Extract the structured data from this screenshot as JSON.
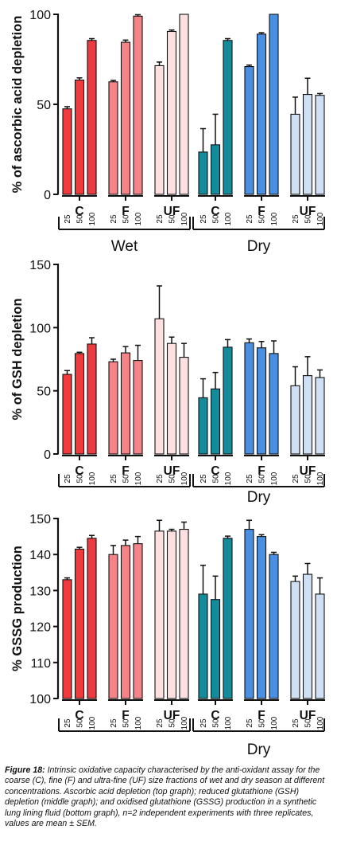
{
  "colors": {
    "wet_C": "#ef3b3d",
    "wet_F": "#f58488",
    "wet_UF": "#fde0df",
    "dry_C": "#138b9b",
    "dry_F": "#4a90e2",
    "dry_UF": "#cfe0f5",
    "axis": "#111111"
  },
  "chart_data": [
    {
      "type": "bar",
      "ylabel": "% of ascorbic acid depletion",
      "ylim": [
        0,
        100
      ],
      "yticks": [
        "0",
        "50",
        "100"
      ],
      "groups": [
        "C",
        "F",
        "UF",
        "C",
        "F",
        "UF"
      ],
      "concentrations": [
        "25",
        "50",
        "100"
      ],
      "seasons": [
        "Wet",
        "Dry"
      ],
      "series": [
        {
          "season": "Wet",
          "fraction": "C",
          "values": [
            47.5,
            63.5,
            85.5
          ],
          "errors": [
            1.2,
            1.2,
            1.0
          ]
        },
        {
          "season": "Wet",
          "fraction": "F",
          "values": [
            62.5,
            84.5,
            99
          ],
          "errors": [
            0.8,
            1.2,
            0.8
          ]
        },
        {
          "season": "Wet",
          "fraction": "UF",
          "values": [
            71.5,
            90.5,
            100
          ],
          "errors": [
            2.0,
            0.8,
            0
          ]
        },
        {
          "season": "Dry",
          "fraction": "C",
          "values": [
            23.5,
            27.5,
            85.5
          ],
          "errors": [
            13,
            17,
            1.0
          ]
        },
        {
          "season": "Dry",
          "fraction": "F",
          "values": [
            71,
            89,
            100
          ],
          "errors": [
            0.8,
            0.8,
            0
          ]
        },
        {
          "season": "Dry",
          "fraction": "UF",
          "values": [
            44.5,
            55.5,
            55
          ],
          "errors": [
            9.5,
            9,
            1.0
          ]
        }
      ]
    },
    {
      "type": "bar",
      "ylabel": "% of GSH depletion",
      "ylim": [
        0,
        150
      ],
      "yticks": [
        "0",
        "50",
        "100",
        "150"
      ],
      "groups": [
        "C",
        "F",
        "UF",
        "C",
        "F",
        "UF"
      ],
      "concentrations": [
        "25",
        "50",
        "100"
      ],
      "seasons": [
        "",
        "Dry"
      ],
      "series": [
        {
          "season": "Wet",
          "fraction": "C",
          "values": [
            63,
            79.5,
            87
          ],
          "errors": [
            3,
            1,
            5
          ]
        },
        {
          "season": "Wet",
          "fraction": "F",
          "values": [
            73,
            80,
            74
          ],
          "errors": [
            2,
            5,
            12
          ]
        },
        {
          "season": "Wet",
          "fraction": "UF",
          "values": [
            107,
            87.5,
            76.5
          ],
          "errors": [
            26,
            5,
            11
          ]
        },
        {
          "season": "Dry",
          "fraction": "C",
          "values": [
            44.5,
            51.5,
            84.5
          ],
          "errors": [
            15,
            13,
            6
          ]
        },
        {
          "season": "Dry",
          "fraction": "F",
          "values": [
            88,
            84,
            79.5
          ],
          "errors": [
            3,
            5,
            10
          ]
        },
        {
          "season": "Dry",
          "fraction": "UF",
          "values": [
            54,
            62,
            60.5
          ],
          "errors": [
            15,
            15,
            6
          ]
        }
      ]
    },
    {
      "type": "bar",
      "ylabel": "% GSSG production",
      "ylim": [
        100,
        150
      ],
      "yticks": [
        "100",
        "110",
        "120",
        "130",
        "140",
        "150"
      ],
      "groups": [
        "C",
        "F",
        "UF",
        "C",
        "F",
        "UF"
      ],
      "concentrations": [
        "25",
        "50",
        "100"
      ],
      "seasons": [
        "",
        "Dry"
      ],
      "series": [
        {
          "season": "Wet",
          "fraction": "C",
          "values": [
            133,
            141.5,
            144.5
          ],
          "errors": [
            0.5,
            0.5,
            0.8
          ]
        },
        {
          "season": "Wet",
          "fraction": "F",
          "values": [
            140,
            142.5,
            143
          ],
          "errors": [
            2.5,
            1.5,
            2
          ]
        },
        {
          "season": "Wet",
          "fraction": "UF",
          "values": [
            146.5,
            146.5,
            147
          ],
          "errors": [
            3,
            0.5,
            2
          ]
        },
        {
          "season": "Dry",
          "fraction": "C",
          "values": [
            129,
            127.5,
            144.5
          ],
          "errors": [
            8,
            6.5,
            0.6
          ]
        },
        {
          "season": "Dry",
          "fraction": "F",
          "values": [
            147,
            145,
            140
          ],
          "errors": [
            2.5,
            0.5,
            0.6
          ]
        },
        {
          "season": "Dry",
          "fraction": "UF",
          "values": [
            132.5,
            134.5,
            129
          ],
          "errors": [
            1.5,
            3,
            4.5
          ]
        }
      ]
    }
  ],
  "caption": {
    "label": "Figure 18:",
    "text": "Intrinsic oxidative capacity characterised by the anti-oxidant assay for the coarse (C), fine (F) and ultra-fine (UF) size fractions of wet and dry season at different concentrations. Ascorbic acid depletion (top graph); reduced glutathione (GSH) depletion (middle graph); and oxidised glutathione (GSSG) production in a synthetic lung lining fluid (bottom graph), n=2 independent experiments with three replicates, values are mean ± SEM."
  }
}
